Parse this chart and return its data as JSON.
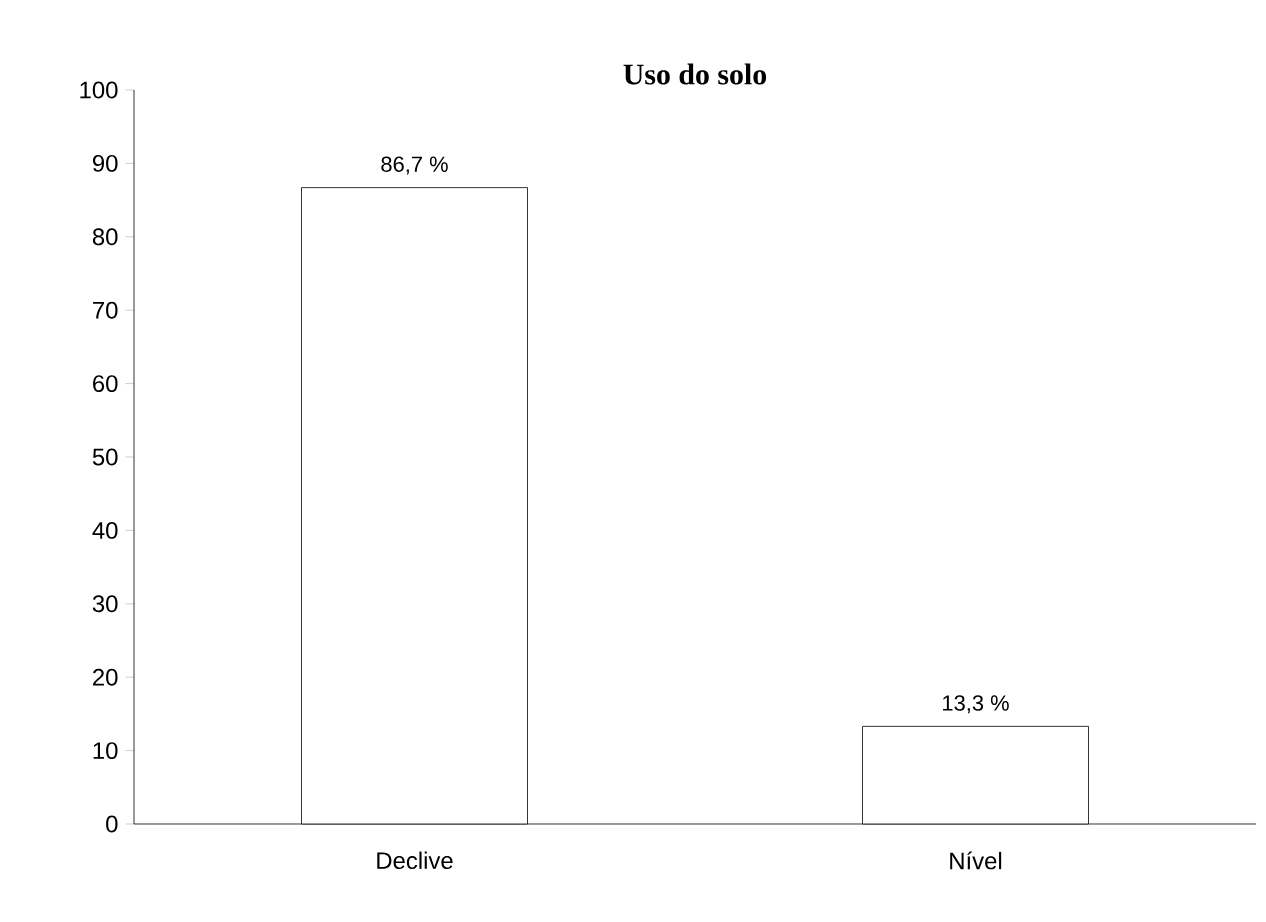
{
  "chart_data": {
    "type": "bar",
    "title": "Uso do solo",
    "categories": [
      "Declive",
      "Nível"
    ],
    "values": [
      86.7,
      13.3
    ],
    "value_labels": [
      "86,7 %",
      "13,3 %"
    ],
    "color": "#ffffff",
    "ylim": [
      0,
      100
    ],
    "yticks": [
      0,
      10,
      20,
      30,
      40,
      50,
      60,
      70,
      80,
      90,
      100
    ],
    "grid": false
  }
}
